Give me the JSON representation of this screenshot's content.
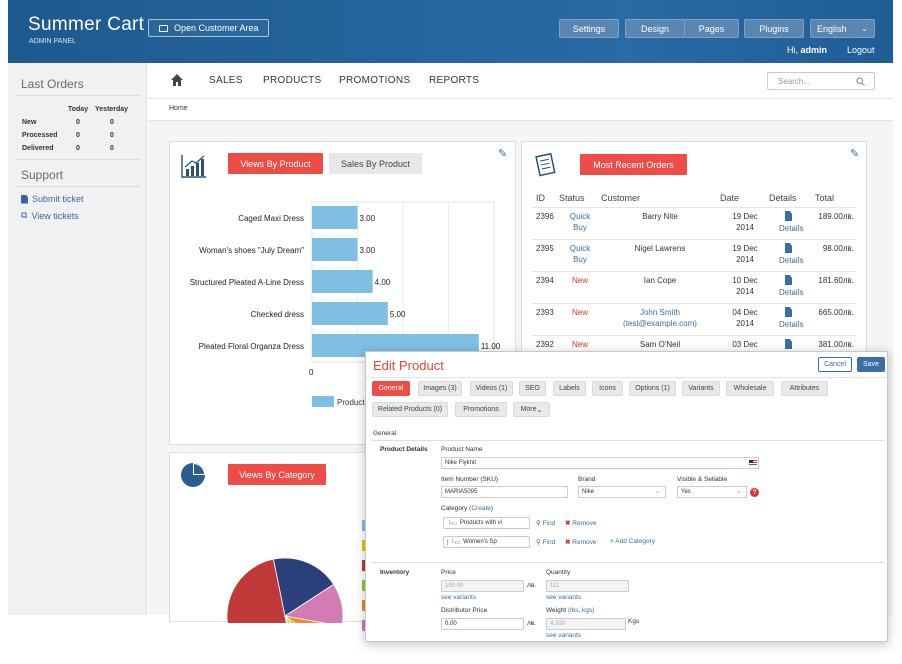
{
  "header": {
    "logo": "Summer Cart",
    "logo_sub": "ADMIN PANEL",
    "open_customer": "Open Customer Area",
    "buttons": [
      "Settings",
      "Design",
      "Pages",
      "Plugins"
    ],
    "language": "English",
    "greeting": "Hi,",
    "user": "admin",
    "logout": "Logout"
  },
  "sidebar": {
    "last_orders_title": "Last Orders",
    "col_today": "Today",
    "col_yesterday": "Yesterday",
    "rows": [
      {
        "label": "New",
        "today": "0",
        "yesterday": "0"
      },
      {
        "label": "Processed",
        "today": "0",
        "yesterday": "0"
      },
      {
        "label": "Delivered",
        "today": "0",
        "yesterday": "0"
      }
    ],
    "support_title": "Support",
    "links": [
      "Submit ticket",
      "View tickets"
    ]
  },
  "nav": {
    "items": [
      "SALES",
      "PRODUCTS",
      "PROMOTIONS",
      "REPORTS"
    ],
    "search_placeholder": "Search..."
  },
  "breadcrumb": "Home",
  "views_panel": {
    "tab_active": "Views By Product",
    "tab_inactive": "Sales By Product",
    "legend": "Products"
  },
  "chart_data": {
    "type": "bar",
    "orientation": "horizontal",
    "categories": [
      "Caged Maxi Dress",
      "Woman's shoes \"July Dream\"",
      "Structured Pleated A-Line Dress",
      "Checked dress",
      "Pleated Floral Organza Dress"
    ],
    "values": [
      3.0,
      3.0,
      4.0,
      5.0,
      11.0
    ],
    "labels": [
      "3.00",
      "3.00",
      "4.00",
      "5.00",
      "11.00"
    ],
    "xlim": [
      0,
      12
    ],
    "x_tick": "0",
    "legend": "Products",
    "color": "#7fbfe3"
  },
  "category_panel": {
    "tab_active": "Views By Category"
  },
  "orders_panel": {
    "title": "Most Recent Orders",
    "columns": [
      "ID",
      "Status",
      "Customer",
      "Date",
      "Details",
      "Total"
    ],
    "details_label": "Details",
    "rows": [
      {
        "id": "2396",
        "status1": "Quick",
        "status2": "Buy",
        "customer1": "Barry Nite",
        "customer2": "",
        "date1": "19 Dec",
        "date2": "2014",
        "total": "189.00лв."
      },
      {
        "id": "2395",
        "status1": "Quick",
        "status2": "Buy",
        "customer1": "Nigel Lawrens",
        "customer2": "",
        "date1": "19 Dec",
        "date2": "2014",
        "total": "98.00лв."
      },
      {
        "id": "2394",
        "status1": "New",
        "status2": "",
        "customer1": "Ian Cope",
        "customer2": "",
        "date1": "10 Dec",
        "date2": "2014",
        "total": "181.60лв."
      },
      {
        "id": "2393",
        "status1": "New",
        "status2": "",
        "customer1": "John Smith",
        "customer2": "(test@example.com)",
        "date1": "04 Dec",
        "date2": "2014",
        "total": "665.00лв."
      },
      {
        "id": "2392",
        "status1": "New",
        "status2": "",
        "customer1": "Sam O'Neil",
        "customer2": "",
        "date1": "03 Dec",
        "date2": "",
        "total": "381.00лв."
      }
    ]
  },
  "modal": {
    "title": "Edit Product",
    "cancel": "Cancel",
    "save": "Save",
    "tabs_row1": [
      "General",
      "Images (3)",
      "Videos (1)",
      "SEO",
      "Labels",
      "Icons",
      "Options (1)",
      "Variants",
      "Wholesale",
      "Attributes"
    ],
    "tabs_row2": [
      "Related Products (0)",
      "Promotions",
      "More"
    ],
    "section": "General",
    "product_details": "Product Details",
    "product_name_label": "Product Name",
    "product_name": "Nike Flyknit",
    "sku_label": "Item Number (SKU)",
    "sku": "MARIA5095",
    "brand_label": "Brand",
    "brand": "Nike",
    "visible_label": "Visible & Sellable",
    "visible": "Yes",
    "category_label": "Category",
    "create": "Create",
    "cat1": "Products with vi",
    "cat2": "Women's Sp",
    "find": "Find",
    "remove": "Remove",
    "add_category": "Add Category",
    "inventory": "Inventory",
    "price_label": "Price",
    "price": "190.00",
    "currency": "лв.",
    "quantity_label": "Quantity",
    "quantity": "111",
    "see_variants": "see variants",
    "dist_price_label": "Distributor Price",
    "dist_price": "0.00",
    "weight_label": "Weight",
    "weight_units": "(lbs, kgs)",
    "weight": "4.300",
    "kgs": "Kgs"
  },
  "pie": {
    "colors": [
      "#c03a3a",
      "#3fa3d8",
      "#8cc63f",
      "#f2c500",
      "#f08a24",
      "#d37bb5",
      "#2b3f7a"
    ],
    "legend_colors": [
      "#7fbfe3",
      "#f2c500",
      "#c03a3a",
      "#8cc63f",
      "#f08a24",
      "#d37bb5"
    ]
  }
}
